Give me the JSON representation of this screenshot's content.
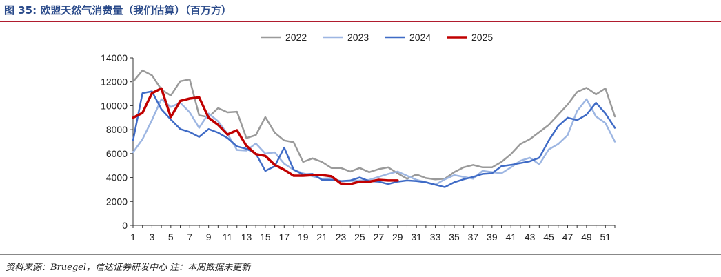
{
  "header": {
    "title": "图 35:  欧盟天然气消费量（我们估算）（百万方）"
  },
  "footer": {
    "source": "资料来源：Bruegel，信达证券研发中心  注：本周数据未更新"
  },
  "chart_data": {
    "type": "line",
    "title": "",
    "xlabel": "",
    "ylabel": "",
    "ylim": [
      0,
      14000
    ],
    "yticks": [
      0,
      2000,
      4000,
      6000,
      8000,
      10000,
      12000,
      14000
    ],
    "xlim": [
      1,
      52
    ],
    "xticks": [
      1,
      3,
      5,
      7,
      9,
      11,
      13,
      15,
      17,
      19,
      21,
      23,
      25,
      27,
      29,
      31,
      33,
      35,
      37,
      39,
      41,
      43,
      45,
      47,
      49,
      51
    ],
    "legend": "top-center",
    "grid": false,
    "colors": {
      "2022": "#9a9a9a",
      "2023": "#9db6e2",
      "2024": "#3f6bc6",
      "2025": "#c00000"
    },
    "series": [
      {
        "name": "2022",
        "x": [
          1,
          2,
          3,
          4,
          5,
          6,
          7,
          8,
          9,
          10,
          11,
          12,
          13,
          14,
          15,
          16,
          17,
          18,
          19,
          20,
          21,
          22,
          23,
          24,
          25,
          26,
          27,
          28,
          29,
          30,
          31,
          32,
          33,
          34,
          35,
          36,
          37,
          38,
          39,
          40,
          41,
          42,
          43,
          44,
          45,
          46,
          47,
          48,
          49,
          50,
          51,
          52
        ],
        "values": [
          12000,
          12950,
          12550,
          11350,
          10850,
          12050,
          12200,
          9200,
          9050,
          9800,
          9450,
          9500,
          7300,
          7550,
          9050,
          7750,
          7100,
          6950,
          5300,
          5600,
          5300,
          4800,
          4800,
          4500,
          4800,
          4450,
          4700,
          4850,
          4350,
          3900,
          4250,
          3950,
          3850,
          3900,
          4450,
          4850,
          5050,
          4850,
          4850,
          5300,
          5950,
          6800,
          7200,
          7800,
          8400,
          9250,
          10100,
          11150,
          11500,
          10950,
          11450,
          9100
        ]
      },
      {
        "name": "2023",
        "x": [
          1,
          2,
          3,
          4,
          5,
          6,
          7,
          8,
          9,
          10,
          11,
          12,
          13,
          14,
          15,
          16,
          17,
          18,
          19,
          20,
          21,
          22,
          23,
          24,
          25,
          26,
          27,
          28,
          29,
          30,
          31,
          32,
          33,
          34,
          35,
          36,
          37,
          38,
          39,
          40,
          41,
          42,
          43,
          44,
          45,
          46,
          47,
          48,
          49,
          50,
          51,
          52
        ],
        "values": [
          6100,
          7200,
          8800,
          10550,
          9900,
          10250,
          9450,
          8150,
          9350,
          8700,
          7650,
          6300,
          6250,
          6850,
          6000,
          6100,
          5150,
          4650,
          4350,
          4100,
          3900,
          3950,
          3700,
          3700,
          3750,
          3800,
          4050,
          4300,
          4500,
          4150,
          3800,
          3600,
          3400,
          3850,
          4200,
          4050,
          3900,
          4550,
          4450,
          4350,
          4850,
          5400,
          5650,
          5100,
          6350,
          6800,
          7550,
          9550,
          10550,
          9100,
          8550,
          7000
        ]
      },
      {
        "name": "2024",
        "x": [
          1,
          2,
          3,
          4,
          5,
          6,
          7,
          8,
          9,
          10,
          11,
          12,
          13,
          14,
          15,
          16,
          17,
          18,
          19,
          20,
          21,
          22,
          23,
          24,
          25,
          26,
          27,
          28,
          29,
          30,
          31,
          32,
          33,
          34,
          35,
          36,
          37,
          38,
          39,
          40,
          41,
          42,
          43,
          44,
          45,
          46,
          47,
          48,
          49,
          50,
          51,
          52
        ],
        "values": [
          7100,
          11050,
          11200,
          9700,
          8850,
          8050,
          7800,
          7400,
          8050,
          7750,
          7300,
          6600,
          6400,
          6000,
          4550,
          4950,
          6500,
          4650,
          4250,
          4300,
          3800,
          3800,
          3700,
          3750,
          4000,
          3700,
          3650,
          3450,
          3650,
          3750,
          3700,
          3600,
          3400,
          3200,
          3600,
          3850,
          4050,
          4300,
          4350,
          4950,
          5050,
          5200,
          5350,
          5650,
          7100,
          8300,
          9000,
          8800,
          9250,
          10250,
          9350,
          8150
        ]
      },
      {
        "name": "2025",
        "x": [
          1,
          2,
          3,
          4,
          5,
          6,
          7,
          8,
          9,
          10,
          11,
          12,
          13,
          14,
          15,
          16,
          17,
          18,
          19,
          20,
          21,
          22,
          23,
          24,
          25,
          26,
          27,
          28,
          29
        ],
        "values": [
          9000,
          9400,
          11050,
          11450,
          9050,
          10400,
          10600,
          10700,
          9000,
          8400,
          7600,
          7950,
          6650,
          5950,
          5800,
          5050,
          4650,
          4150,
          4150,
          4200,
          4200,
          4100,
          3500,
          3450,
          3650,
          3650,
          3800,
          3750,
          3750
        ]
      }
    ]
  }
}
